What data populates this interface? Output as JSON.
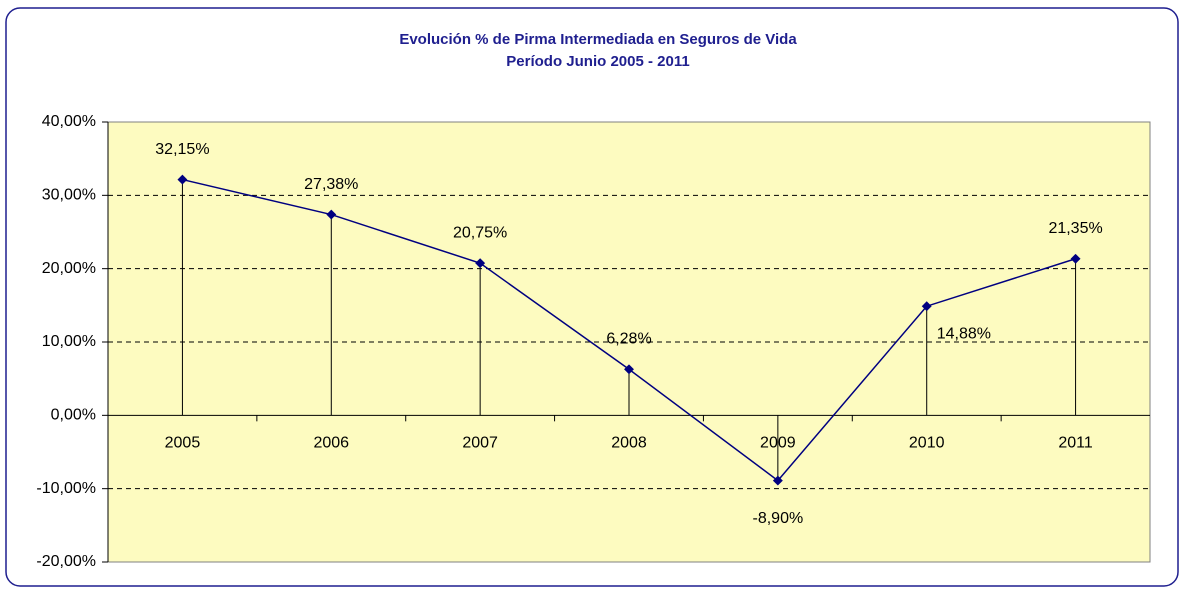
{
  "chart_data": {
    "type": "line",
    "title": "Evolución % de Pirma Intermediada en Seguros de Vida",
    "subtitle": "Período Junio 2005 - 2011",
    "categories": [
      "2005",
      "2006",
      "2007",
      "2008",
      "2009",
      "2010",
      "2011"
    ],
    "values": [
      32.15,
      27.38,
      20.75,
      6.28,
      -8.9,
      14.88,
      21.35
    ],
    "value_labels": [
      "32,15%",
      "27,38%",
      "20,75%",
      "6,28%",
      "-8,90%",
      "14,88%",
      "21,35%"
    ],
    "color": "#000080",
    "ylim": [
      -20,
      40
    ],
    "yticks": [
      {
        "value": -20,
        "label": "-20,00%"
      },
      {
        "value": -10,
        "label": "-10,00%"
      },
      {
        "value": 0,
        "label": "0,00%"
      },
      {
        "value": 10,
        "label": "10,00%"
      },
      {
        "value": 20,
        "label": "20,00%"
      },
      {
        "value": 30,
        "label": "30,00%"
      },
      {
        "value": 40,
        "label": "40,00%"
      }
    ],
    "grid": true
  }
}
